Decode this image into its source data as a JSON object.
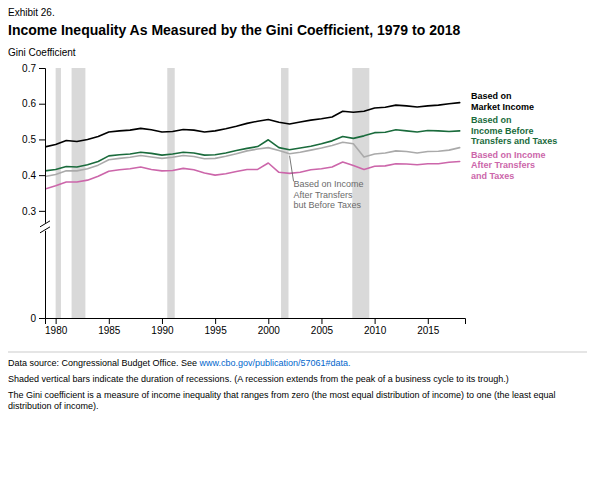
{
  "chart_data": {
    "type": "line",
    "title": "Income Inequality As Measured by the Gini Coefficient, 1979 to 2018",
    "y_label": "Gini Coefficient",
    "annotations": [
      {
        "text": "Exhibit 26."
      },
      {
        "text": "Data source: Congressional Budget Office. See "
      },
      {
        "text": "www.cbo.gov/publication/57061#data.",
        "color": "#0066cc"
      },
      {
        "text": "Shaded vertical bars indicate the duration of recessions. (A recession extends from the peak of a business cycle to its trough.)"
      },
      {
        "text": "The Gini coefficient is a measure of income inequality that ranges from zero (the most equal distribution of income) to one (the least equal\ndistribution of income)."
      }
    ],
    "xlim": [
      1979,
      2018.5
    ],
    "xticks": [
      1980,
      1985,
      1990,
      1995,
      2000,
      2005,
      2010,
      2015
    ],
    "ylim": [
      0,
      0.7
    ],
    "yticks": [
      0,
      0.3,
      0.4,
      0.5,
      0.6,
      0.7
    ],
    "grid": false,
    "recession_bars": [
      [
        1980.0,
        1980.5
      ],
      [
        1981.5,
        1982.8
      ],
      [
        1990.5,
        1991.2
      ],
      [
        2001.2,
        2001.9
      ],
      [
        2007.9,
        2009.5
      ]
    ],
    "x": [
      1979,
      1980,
      1981,
      1982,
      1983,
      1984,
      1985,
      1986,
      1987,
      1988,
      1989,
      1990,
      1991,
      1992,
      1993,
      1994,
      1995,
      1996,
      1997,
      1998,
      1999,
      2000,
      2001,
      2002,
      2003,
      2004,
      2005,
      2006,
      2007,
      2008,
      2009,
      2010,
      2011,
      2012,
      2013,
      2014,
      2015,
      2016,
      2017,
      2018
    ],
    "series": [
      {
        "name": "Based on\nMarket Income",
        "color": "#000000",
        "values": [
          0.479,
          0.486,
          0.497,
          0.494,
          0.5,
          0.508,
          0.521,
          0.524,
          0.526,
          0.531,
          0.527,
          0.521,
          0.522,
          0.528,
          0.526,
          0.521,
          0.524,
          0.53,
          0.537,
          0.545,
          0.551,
          0.556,
          0.548,
          0.543,
          0.549,
          0.554,
          0.558,
          0.563,
          0.579,
          0.576,
          0.579,
          0.588,
          0.59,
          0.596,
          0.594,
          0.591,
          0.594,
          0.596,
          0.6,
          0.603
        ]
      },
      {
        "name": "Based on\nIncome Before\nTransfers and Taxes",
        "color": "#1a6b3c",
        "values": [
          0.412,
          0.416,
          0.424,
          0.423,
          0.429,
          0.438,
          0.454,
          0.457,
          0.459,
          0.464,
          0.461,
          0.456,
          0.459,
          0.464,
          0.462,
          0.456,
          0.457,
          0.462,
          0.469,
          0.475,
          0.48,
          0.499,
          0.477,
          0.471,
          0.476,
          0.481,
          0.488,
          0.496,
          0.508,
          0.503,
          0.51,
          0.519,
          0.52,
          0.527,
          0.524,
          0.521,
          0.525,
          0.524,
          0.522,
          0.524
        ]
      },
      {
        "name": "Based on Income\nAfter Transfers\nbut Before Taxes",
        "color": "#aaaaaa",
        "values": [
          0.396,
          0.402,
          0.412,
          0.412,
          0.418,
          0.428,
          0.443,
          0.447,
          0.45,
          0.455,
          0.451,
          0.447,
          0.45,
          0.455,
          0.452,
          0.446,
          0.447,
          0.453,
          0.46,
          0.468,
          0.473,
          0.477,
          0.469,
          0.46,
          0.464,
          0.47,
          0.476,
          0.483,
          0.492,
          0.488,
          0.451,
          0.459,
          0.462,
          0.468,
          0.466,
          0.462,
          0.466,
          0.467,
          0.47,
          0.477
        ]
      },
      {
        "name": "Based on Income\nAfter Transfers\nand Taxes",
        "color": "#cc66aa",
        "values": [
          0.361,
          0.37,
          0.381,
          0.381,
          0.386,
          0.397,
          0.411,
          0.415,
          0.418,
          0.423,
          0.416,
          0.412,
          0.413,
          0.419,
          0.415,
          0.406,
          0.4,
          0.404,
          0.41,
          0.416,
          0.416,
          0.434,
          0.408,
          0.405,
          0.408,
          0.415,
          0.418,
          0.423,
          0.437,
          0.427,
          0.416,
          0.425,
          0.426,
          0.432,
          0.431,
          0.429,
          0.432,
          0.432,
          0.436,
          0.438
        ]
      }
    ]
  }
}
